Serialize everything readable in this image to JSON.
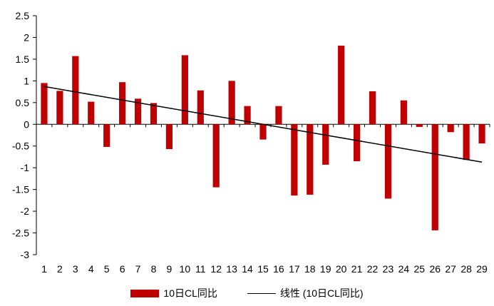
{
  "chart_data": {
    "type": "bar",
    "categories": [
      "1",
      "2",
      "3",
      "4",
      "5",
      "6",
      "7",
      "8",
      "9",
      "10",
      "11",
      "12",
      "13",
      "14",
      "15",
      "16",
      "17",
      "18",
      "19",
      "20",
      "21",
      "22",
      "23",
      "24",
      "25",
      "26",
      "27",
      "28",
      "29"
    ],
    "series": [
      {
        "name": "10日CL同比",
        "type": "bar",
        "color": "#c00000",
        "values": [
          0.95,
          0.77,
          1.57,
          0.52,
          -0.52,
          0.97,
          0.59,
          0.49,
          -0.57,
          1.59,
          0.78,
          -1.45,
          1.0,
          0.42,
          -0.35,
          0.42,
          -1.64,
          -1.62,
          -0.93,
          1.81,
          -0.85,
          0.76,
          -1.71,
          0.55,
          -0.06,
          -2.44,
          -0.18,
          -0.82,
          -0.44
        ]
      },
      {
        "name": "线性 (10日CL同比)",
        "type": "line",
        "color": "#000000",
        "start": 0.87,
        "end": -0.87
      }
    ],
    "title": "",
    "xlabel": "",
    "ylabel": "",
    "ylim": [
      -3,
      2.5
    ],
    "yticks": [
      "2.5",
      "2",
      "1.5",
      "1",
      "0.5",
      "0",
      "-0.5",
      "-1",
      "-1.5",
      "-2",
      "-2.5",
      "-3"
    ],
    "ytick_values": [
      2.5,
      2,
      1.5,
      1,
      0.5,
      0,
      -0.5,
      -1,
      -1.5,
      -2,
      -2.5,
      -3
    ],
    "grid": false,
    "legend_position": "bottom"
  }
}
